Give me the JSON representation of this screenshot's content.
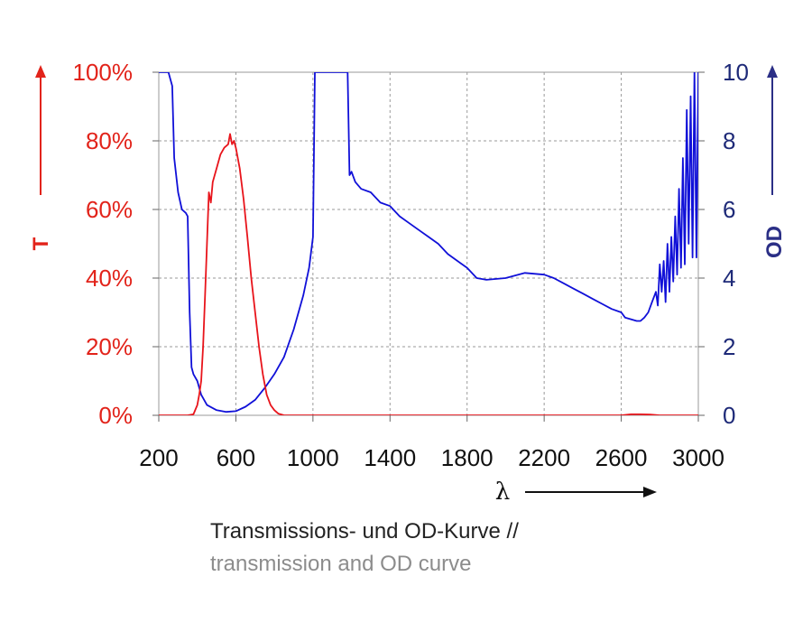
{
  "chart_data": {
    "type": "line",
    "xlabel": "λ",
    "x_ticks": [
      "200",
      "600",
      "1000",
      "1400",
      "1800",
      "2200",
      "2600",
      "3000"
    ],
    "xlim": [
      200,
      3000
    ],
    "y_left": {
      "label": "T",
      "ticks": [
        "0%",
        "20%",
        "40%",
        "60%",
        "80%",
        "100%"
      ],
      "ylim": [
        0,
        100
      ],
      "color": "#e2231a"
    },
    "y_right": {
      "label": "OD",
      "ticks": [
        "0",
        "2",
        "4",
        "6",
        "8",
        "10"
      ],
      "ylim": [
        0,
        10
      ],
      "color": "#1e2a78"
    },
    "grid": true,
    "series": [
      {
        "axis": "left",
        "color": "#e8141b",
        "x": [
          200,
          300,
          350,
          380,
          400,
          410,
          420,
          430,
          440,
          450,
          460,
          470,
          480,
          500,
          520,
          540,
          560,
          570,
          580,
          590,
          600,
          620,
          640,
          660,
          680,
          700,
          720,
          740,
          760,
          780,
          800,
          820,
          850,
          900,
          1000,
          1400,
          1800,
          2200,
          2600,
          2650,
          2700,
          2750,
          2800,
          3000
        ],
        "values": [
          0,
          0,
          0,
          0.3,
          3,
          6,
          10,
          20,
          35,
          50,
          65,
          62,
          68,
          72,
          76,
          78,
          79,
          82,
          79,
          80,
          78,
          72,
          63,
          52,
          40,
          30,
          20,
          12,
          6,
          3,
          1.5,
          0.5,
          0,
          0,
          0,
          0,
          0,
          0,
          0,
          0.3,
          0.3,
          0.2,
          0,
          0
        ]
      },
      {
        "axis": "right",
        "color": "#1010d8",
        "x": [
          200,
          250,
          270,
          280,
          300,
          320,
          340,
          350,
          360,
          370,
          380,
          400,
          420,
          450,
          500,
          550,
          600,
          650,
          700,
          750,
          800,
          850,
          900,
          950,
          980,
          1000,
          1010,
          1180,
          1190,
          1200,
          1220,
          1250,
          1300,
          1350,
          1400,
          1450,
          1500,
          1550,
          1600,
          1650,
          1700,
          1750,
          1800,
          1850,
          1900,
          2000,
          2100,
          2200,
          2250,
          2300,
          2350,
          2400,
          2450,
          2500,
          2550,
          2600,
          2620,
          2650,
          2680,
          2700,
          2720,
          2740,
          2760,
          2780,
          2790,
          2800,
          2810,
          2820,
          2830,
          2840,
          2850,
          2860,
          2870,
          2880,
          2890,
          2900,
          2910,
          2920,
          2930,
          2940,
          2950,
          2960,
          2970,
          2980,
          2990,
          3000
        ],
        "values": [
          10,
          10,
          9.6,
          7.5,
          6.5,
          6.0,
          5.9,
          5.8,
          3.0,
          1.4,
          1.2,
          1.0,
          0.6,
          0.3,
          0.15,
          0.1,
          0.12,
          0.25,
          0.45,
          0.8,
          1.2,
          1.7,
          2.5,
          3.5,
          4.3,
          5.2,
          10,
          10,
          7.0,
          7.1,
          6.8,
          6.6,
          6.5,
          6.2,
          6.1,
          5.8,
          5.6,
          5.4,
          5.2,
          5.0,
          4.7,
          4.5,
          4.3,
          4.0,
          3.95,
          4.0,
          4.15,
          4.1,
          4.0,
          3.85,
          3.7,
          3.55,
          3.4,
          3.25,
          3.1,
          3.0,
          2.85,
          2.8,
          2.75,
          2.75,
          2.85,
          3.0,
          3.3,
          3.6,
          3.2,
          4.4,
          3.6,
          4.5,
          3.3,
          5.0,
          3.6,
          5.2,
          3.9,
          5.8,
          4.1,
          6.6,
          4.3,
          7.5,
          4.4,
          8.9,
          5.0,
          9.3,
          4.6,
          10,
          4.6,
          10
        ]
      }
    ]
  },
  "caption": {
    "line1": "Transmissions- und OD-Kurve //",
    "line2": "transmission and OD curve"
  }
}
